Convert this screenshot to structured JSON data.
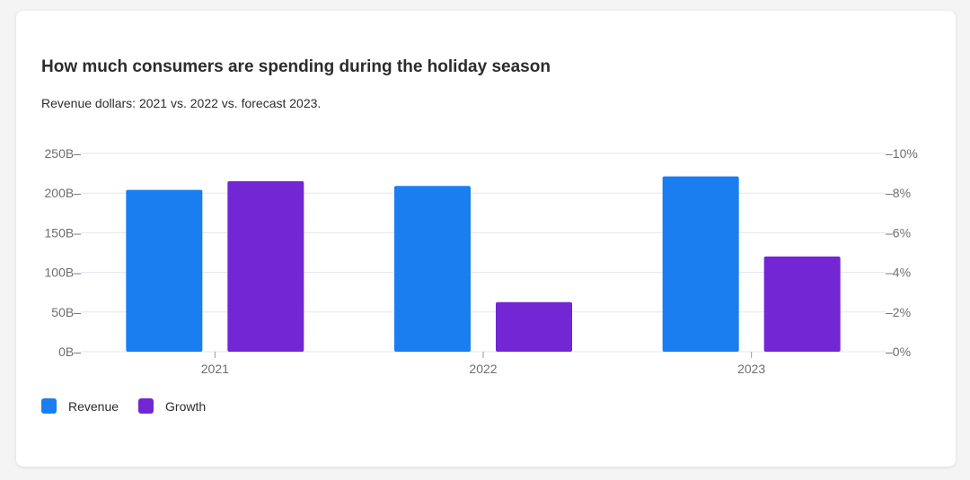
{
  "card": {
    "title": "How much consumers are spending during the holiday season",
    "subtitle": "Revenue dollars: 2021 vs. 2022 vs. forecast 2023."
  },
  "colors": {
    "revenue": "#1a7ef0",
    "growth": "#7326d3",
    "grid": "#e3e5ec"
  },
  "chart_data": {
    "type": "bar",
    "categories": [
      "2021",
      "2022",
      "2023"
    ],
    "series": [
      {
        "name": "Revenue",
        "axis": "left",
        "values": [
          204,
          209,
          221
        ]
      },
      {
        "name": "Growth",
        "axis": "right",
        "values": [
          8.6,
          2.5,
          4.8
        ]
      }
    ],
    "y_left": {
      "min": 0,
      "max": 250,
      "ticks": [
        "0B",
        "50B",
        "100B",
        "150B",
        "200B",
        "250B"
      ]
    },
    "y_right": {
      "min": 0,
      "max": 10,
      "ticks": [
        "0%",
        "2%",
        "4%",
        "6%",
        "8%",
        "10%"
      ]
    },
    "grid": true,
    "legend_position": "bottom-left"
  }
}
